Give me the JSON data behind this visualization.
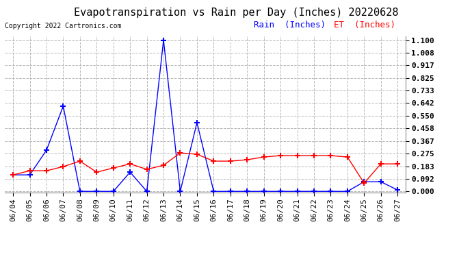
{
  "title": "Evapotranspiration vs Rain per Day (Inches) 20220628",
  "copyright": "Copyright 2022 Cartronics.com",
  "legend_rain": "Rain  (Inches)",
  "legend_et": "ET  (Inches)",
  "dates": [
    "06/04",
    "06/05",
    "06/06",
    "06/07",
    "06/08",
    "06/09",
    "06/10",
    "06/11",
    "06/12",
    "06/13",
    "06/14",
    "06/15",
    "06/16",
    "06/17",
    "06/18",
    "06/19",
    "06/20",
    "06/21",
    "06/22",
    "06/23",
    "06/24",
    "06/25",
    "06/26",
    "06/27"
  ],
  "rain": [
    0.12,
    0.12,
    0.3,
    0.62,
    0.0,
    0.0,
    0.0,
    0.14,
    0.0,
    1.1,
    0.0,
    0.5,
    0.0,
    0.0,
    0.0,
    0.0,
    0.0,
    0.0,
    0.0,
    0.0,
    0.0,
    0.07,
    0.07,
    0.01
  ],
  "et": [
    0.12,
    0.15,
    0.15,
    0.18,
    0.22,
    0.14,
    0.17,
    0.2,
    0.16,
    0.19,
    0.28,
    0.27,
    0.22,
    0.22,
    0.23,
    0.25,
    0.26,
    0.26,
    0.26,
    0.26,
    0.25,
    0.06,
    0.2,
    0.2
  ],
  "rain_color": "#0000ff",
  "et_color": "#ff0000",
  "background_color": "#ffffff",
  "grid_color": "#b0b0b0",
  "title_fontsize": 11,
  "label_fontsize": 9,
  "tick_fontsize": 8,
  "copyright_fontsize": 7,
  "yticks": [
    0.0,
    0.092,
    0.183,
    0.275,
    0.367,
    0.458,
    0.55,
    0.642,
    0.733,
    0.825,
    0.917,
    1.008,
    1.1
  ],
  "ylim_min": -0.01,
  "ylim_max": 1.13,
  "marker": "+",
  "markersize": 6,
  "linewidth": 1.0
}
